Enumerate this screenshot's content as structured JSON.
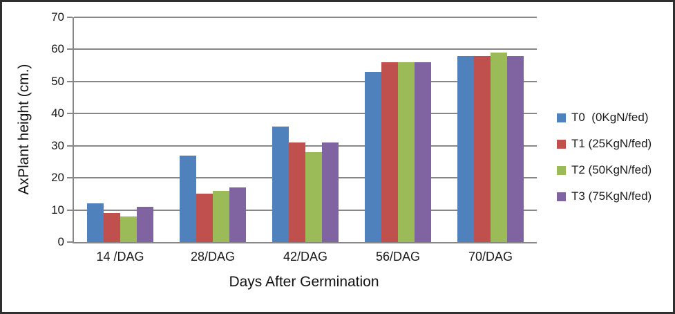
{
  "chart_data": {
    "type": "bar",
    "title": "",
    "xlabel": "Days After Germination",
    "ylabel": "AxPlant height (cm.)",
    "categories": [
      "14 /DAG",
      "28/DAG",
      "42/DAG",
      "56/DAG",
      "70/DAG"
    ],
    "series": [
      {
        "name": "T0  (0KgN/fed)",
        "color": "#4F81BD",
        "values": [
          12,
          27,
          36,
          53,
          58
        ]
      },
      {
        "name": "T1 (25KgN/fed)",
        "color": "#C0504D",
        "values": [
          9,
          15,
          31,
          56,
          58
        ]
      },
      {
        "name": "T2 (50KgN/fed)",
        "color": "#9BBB59",
        "values": [
          8,
          16,
          28,
          56,
          59
        ]
      },
      {
        "name": "T3 (75KgN/fed)",
        "color": "#8064A2",
        "values": [
          11,
          17,
          31,
          56,
          58
        ]
      }
    ],
    "ylim": [
      0,
      70
    ],
    "ytick_step": 10,
    "grid": "horizontal",
    "gridline_color": "#878787",
    "legend_position": "right"
  }
}
